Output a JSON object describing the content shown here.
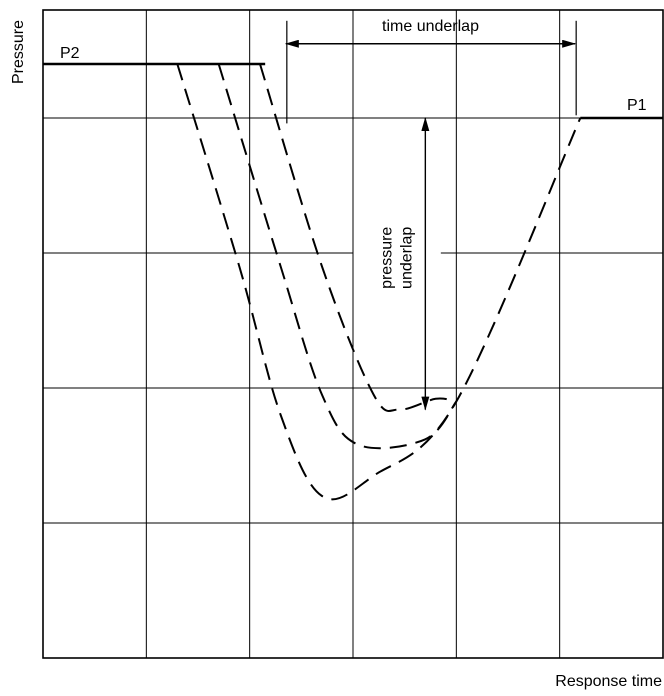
{
  "chart_data": {
    "type": "line",
    "title": "",
    "xlabel": "Response time",
    "ylabel": "Pressure",
    "grid": true,
    "xlim": [
      0,
      6
    ],
    "ylim": [
      0,
      4.8
    ],
    "series": [
      {
        "name": "P2",
        "points": [
          [
            0,
            4.4
          ],
          [
            2.15,
            4.4
          ]
        ]
      },
      {
        "name": "P1",
        "points": [
          [
            5.2,
            4.0
          ],
          [
            6,
            4.0
          ]
        ]
      },
      {
        "points": [
          [
            1.3,
            4.4
          ],
          [
            1.9,
            2.9
          ],
          [
            2.3,
            1.8
          ],
          [
            2.7,
            1.2
          ],
          [
            3.2,
            1.35
          ],
          [
            4.0,
            1.9
          ],
          [
            5.2,
            4.0
          ]
        ]
      },
      {
        "points": [
          [
            1.7,
            4.4
          ],
          [
            2.3,
            2.9
          ],
          [
            2.7,
            1.95
          ],
          [
            3.05,
            1.58
          ],
          [
            3.7,
            1.62
          ],
          [
            4.0,
            1.9
          ]
        ]
      },
      {
        "points": [
          [
            2.1,
            4.4
          ],
          [
            2.7,
            2.9
          ],
          [
            3.2,
            1.95
          ],
          [
            3.45,
            1.84
          ],
          [
            3.8,
            1.92
          ],
          [
            4.0,
            1.9
          ]
        ]
      }
    ],
    "annotations": [
      {
        "text": "time underlap",
        "type": "double-arrow",
        "from": [
          2.35,
          4.55
        ],
        "to": [
          5.15,
          4.55
        ]
      },
      {
        "text": "pressure underlap",
        "type": "double-arrow",
        "from": [
          3.7,
          4.0
        ],
        "to": [
          3.7,
          1.84
        ]
      }
    ]
  }
}
